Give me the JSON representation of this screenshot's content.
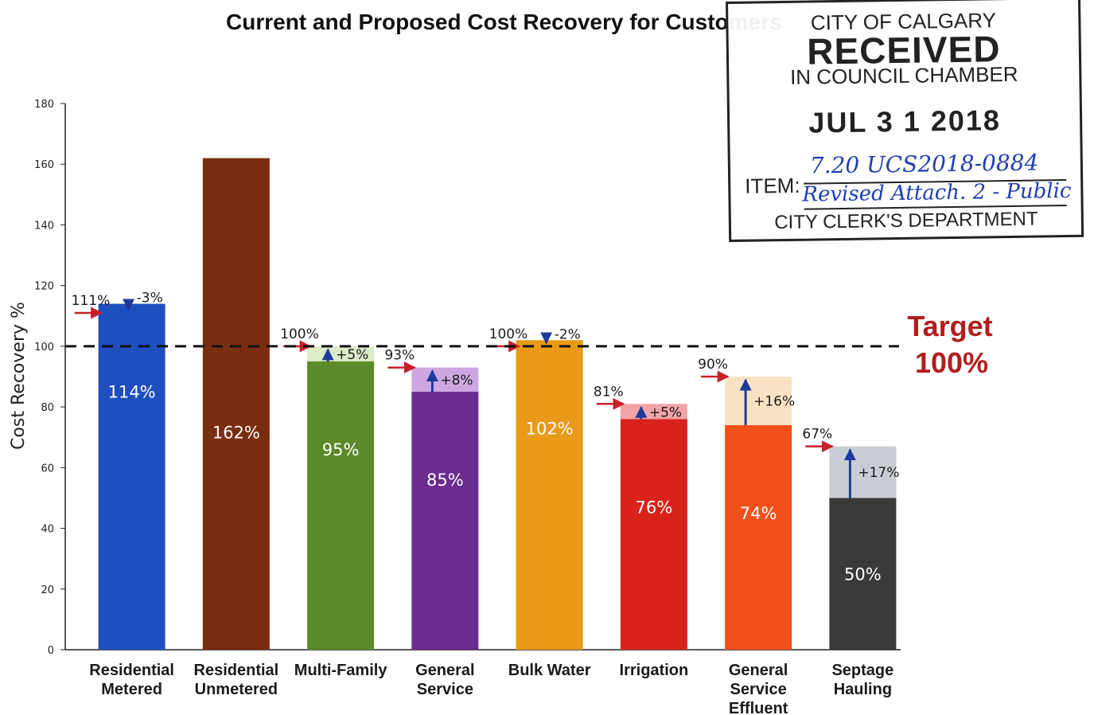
{
  "chart_data": {
    "type": "bar",
    "title": "Current and Proposed Cost Recovery for Customers",
    "ylabel": "Cost Recovery %",
    "xlabel": "",
    "ylim": [
      0,
      180
    ],
    "yticks": [
      0,
      20,
      40,
      60,
      80,
      100,
      120,
      140,
      160,
      180
    ],
    "grid": false,
    "target": {
      "value": 100,
      "label_line1": "Target",
      "label_line2": "100%",
      "color": "#b21d1d"
    },
    "categories": [
      {
        "name": [
          "Residential",
          "Metered"
        ],
        "current": 114,
        "current_label": "114%",
        "proposed": 111,
        "proposed_label": "111%",
        "change_label": "-3%",
        "color": "#1f4fbf",
        "change_color": "#cfe0f0"
      },
      {
        "name": [
          "Residential",
          "Unmetered"
        ],
        "current": 162,
        "current_label": "162%",
        "proposed": null,
        "proposed_label": "",
        "change_label": "",
        "color": "#7a2e10",
        "change_color": ""
      },
      {
        "name": [
          "Multi-Family"
        ],
        "current": 95,
        "current_label": "95%",
        "proposed": 100,
        "proposed_label": "100%",
        "change_label": "+5%",
        "color": "#5b8a2a",
        "change_color": "#dcebc8"
      },
      {
        "name": [
          "General",
          "Service"
        ],
        "current": 85,
        "current_label": "85%",
        "proposed": 93,
        "proposed_label": "93%",
        "change_label": "+8%",
        "color": "#6a2c8e",
        "change_color": "#cda6e2"
      },
      {
        "name": [
          "Bulk Water"
        ],
        "current": 102,
        "current_label": "102%",
        "proposed": 100,
        "proposed_label": "100%",
        "change_label": "-2%",
        "color": "#e89a18",
        "change_color": "#f7e7b8"
      },
      {
        "name": [
          "Irrigation"
        ],
        "current": 76,
        "current_label": "76%",
        "proposed": 81,
        "proposed_label": "81%",
        "change_label": "+5%",
        "color": "#d8231d",
        "change_color": "#f1a4a8"
      },
      {
        "name": [
          "General",
          "Service",
          "Effluent"
        ],
        "current": 74,
        "current_label": "74%",
        "proposed": 90,
        "proposed_label": "90%",
        "change_label": "+16%",
        "color": "#f2501a",
        "change_color": "#f9e2c4"
      },
      {
        "name": [
          "Septage",
          "Hauling"
        ],
        "current": 50,
        "current_label": "50%",
        "proposed": 67,
        "proposed_label": "67%",
        "change_label": "+17%",
        "color": "#3a3a3a",
        "change_color": "#c9ced4"
      }
    ]
  },
  "stamp": {
    "city": "CITY OF CALGARY",
    "received": "RECEIVED",
    "chamber": "IN COUNCIL CHAMBER",
    "date": "JUL 3 1 2018",
    "item_label": "ITEM:",
    "item_handwritten": "7.20 UCS2018-0884",
    "item_handwritten2": "Revised Attach. 2 - Public",
    "department": "CITY CLERK'S DEPARTMENT"
  }
}
